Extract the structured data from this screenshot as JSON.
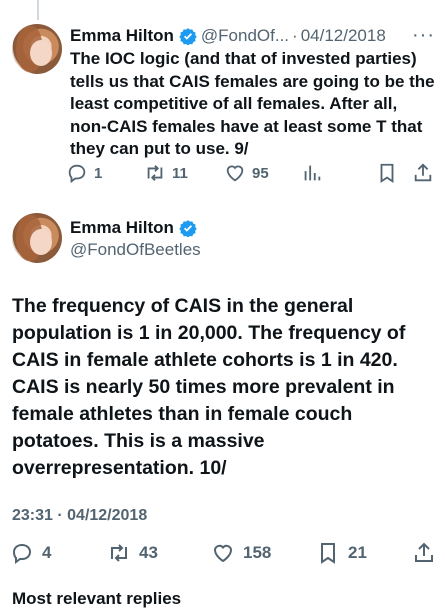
{
  "tweet1": {
    "name": "Emma Hilton",
    "handle_short": "@FondOf...",
    "separator": "·",
    "date": "04/12/2018",
    "more": "···",
    "text": "The IOC logic (and that of invested parties) tells us that CAIS females are going to be the least competitive of all females. After all, non-CAIS females have at least some T that they can put to use. 9/",
    "replies": "1",
    "retweets": "11",
    "likes": "95"
  },
  "tweet2": {
    "name": "Emma Hilton",
    "handle": "@FondOfBeetles",
    "text": "The frequency of CAIS in the general population is 1 in 20,000. The frequency of CAIS in female athlete cohorts is 1 in 420. CAIS is nearly 50 times more prevalent in female athletes than in female couch potatoes. This is a massive overrepresentation. 10/",
    "timestamp": "23:31 · 04/12/2018",
    "replies": "4",
    "retweets": "43",
    "likes": "158",
    "bookmarks": "21"
  },
  "footer": {
    "label": "Most relevant replies"
  },
  "icons": {
    "verified": "verified-badge-icon",
    "reply": "reply-icon",
    "retweet": "retweet-icon",
    "like": "heart-icon",
    "views": "views-icon",
    "bookmark": "bookmark-icon",
    "share": "share-icon"
  },
  "colors": {
    "verified": "#1d9bf0",
    "muted": "#536471",
    "text": "#0f1419"
  }
}
